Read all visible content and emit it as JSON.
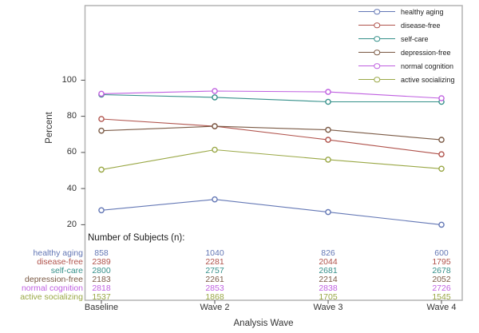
{
  "chart_data": {
    "type": "line",
    "title": "",
    "xlabel": "Analysis Wave",
    "ylabel": "Percent",
    "x": [
      "Baseline",
      "Wave 2",
      "Wave 3",
      "Wave 4"
    ],
    "yticks": [
      20,
      40,
      60,
      80,
      100
    ],
    "ylim": [
      20,
      100
    ],
    "grid": false,
    "legend_position": "top-right",
    "marker": "open-circle",
    "series": [
      {
        "name": "healthy aging",
        "color": "#6377b5",
        "values": [
          28,
          34,
          27,
          20
        ]
      },
      {
        "name": "disease-free",
        "color": "#b0524b",
        "values": [
          78.5,
          74.5,
          67,
          59
        ]
      },
      {
        "name": "self-care",
        "color": "#35908a",
        "values": [
          92,
          90.5,
          88,
          88
        ]
      },
      {
        "name": "depression-free",
        "color": "#7b5a45",
        "values": [
          72,
          74.5,
          72.5,
          67
        ]
      },
      {
        "name": "normal cognition",
        "color": "#bf5fe0",
        "values": [
          92.5,
          94,
          93.5,
          90
        ]
      },
      {
        "name": "active socializing",
        "color": "#9aa846",
        "values": [
          50.5,
          61.5,
          56,
          51
        ]
      }
    ],
    "subjects_table": {
      "title": "Number of Subjects (n):",
      "rows": [
        {
          "label": "healthy aging",
          "values": [
            858,
            1040,
            826,
            600
          ]
        },
        {
          "label": "disease-free",
          "values": [
            2389,
            2281,
            2044,
            1795
          ]
        },
        {
          "label": "self-care",
          "values": [
            2800,
            2757,
            2681,
            2678
          ]
        },
        {
          "label": "depression-free",
          "values": [
            2183,
            2261,
            2214,
            2052
          ]
        },
        {
          "label": "normal cognition",
          "values": [
            2818,
            2853,
            2838,
            2726
          ]
        },
        {
          "label": "active socializing",
          "values": [
            1537,
            1868,
            1705,
            1545
          ]
        }
      ]
    }
  }
}
